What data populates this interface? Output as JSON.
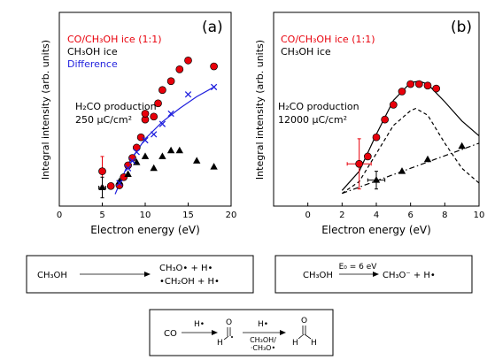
{
  "chart_data": [
    {
      "type": "scatter",
      "panel_label": "(a)",
      "xlabel": "Electron energy (eV)",
      "ylabel": "Integral intensity (arb. units)",
      "xlim": [
        0,
        20
      ],
      "ylim": [
        0,
        10
      ],
      "xticks": [
        "0",
        "5",
        "10",
        "15",
        "20"
      ],
      "legend": [
        {
          "label": "CO/CH₃OH ice (1:1)",
          "color": "#e8000b"
        },
        {
          "label": "CH₃OH ice",
          "color": "#000000"
        },
        {
          "label": "Difference",
          "color": "#1f1fdd"
        }
      ],
      "annotation": [
        "H₂CO production",
        "250 μC/cm²"
      ],
      "series": [
        {
          "name": "CO/CH₃OH ice (1:1)",
          "marker": "circle",
          "x": [
            5,
            6,
            7,
            7.5,
            8,
            8.5,
            9,
            9.5,
            10,
            10,
            11,
            11.5,
            12,
            13,
            14,
            15,
            18
          ],
          "y": [
            1.7,
            0.7,
            0.75,
            1.3,
            2.1,
            2.6,
            3.3,
            4.0,
            5.2,
            5.6,
            5.4,
            6.3,
            7.2,
            7.8,
            8.6,
            9.2,
            8.8
          ],
          "error_points": [
            {
              "x": 5,
              "y": 1.7,
              "xerr": 0.3,
              "yerr": 1.0
            }
          ]
        },
        {
          "name": "CH₃OH ice",
          "marker": "triangle",
          "x": [
            5,
            7,
            8,
            9,
            10,
            11,
            12,
            13,
            14,
            16,
            18
          ],
          "y": [
            0.6,
            1.0,
            1.5,
            2.3,
            2.7,
            1.9,
            2.7,
            3.1,
            3.1,
            2.4,
            2.0
          ],
          "error_points": [
            {
              "x": 5,
              "y": 0.6,
              "xerr": 0.4,
              "yerr": 0.7
            }
          ]
        },
        {
          "name": "Difference",
          "marker": "x",
          "x": [
            7,
            8,
            8.5,
            9,
            10,
            11,
            12,
            13,
            15,
            18
          ],
          "y": [
            0.9,
            1.9,
            2.4,
            3.0,
            3.8,
            4.2,
            4.9,
            5.6,
            6.9,
            7.4
          ]
        }
      ],
      "fit_line": {
        "color": "#1f1fdd",
        "x": [
          6.5,
          8,
          10,
          12,
          14,
          16,
          18
        ],
        "y": [
          0.15,
          2.2,
          3.9,
          5.05,
          5.95,
          6.75,
          7.4
        ]
      }
    },
    {
      "type": "scatter",
      "panel_label": "(b)",
      "xlabel": "Electron energy (eV)",
      "ylabel": "Integral intensity (arb. units)",
      "xlim": [
        -2,
        10
      ],
      "ylim": [
        0,
        10
      ],
      "xticks": [
        "0",
        "2",
        "4",
        "6",
        "8",
        "10"
      ],
      "legend": [
        {
          "label": "CO/CH₃OH ice (1:1)",
          "color": "#e8000b"
        },
        {
          "label": "CH₃OH ice",
          "color": "#000000"
        }
      ],
      "annotation": [
        "H₂CO production",
        "12000 μC/cm²"
      ],
      "series": [
        {
          "name": "CO/CH₃OH ice (1:1)",
          "marker": "circle",
          "x": [
            3,
            3.5,
            4,
            4.5,
            5,
            5.5,
            6,
            6.5,
            7,
            7.5
          ],
          "y": [
            2.2,
            2.7,
            4.0,
            5.2,
            6.2,
            7.1,
            7.6,
            7.6,
            7.5,
            7.3
          ],
          "error_points": [
            {
              "x": 3,
              "y": 2.2,
              "xerr": 0.7,
              "yerr": 1.7
            }
          ]
        },
        {
          "name": "CH₃OH ice",
          "marker": "triangle",
          "x": [
            4,
            5.5,
            7,
            9
          ],
          "y": [
            1.1,
            1.7,
            2.5,
            3.4
          ],
          "error_points": [
            {
              "x": 4,
              "y": 1.1,
              "xerr": 0.5,
              "yerr": 0.6
            }
          ]
        }
      ],
      "curves": [
        {
          "style": "solid",
          "x": [
            2,
            3,
            4,
            5,
            6,
            6.5,
            7,
            8,
            9,
            10
          ],
          "y": [
            0.4,
            1.7,
            4.2,
            6.5,
            7.7,
            7.8,
            7.6,
            6.4,
            5.1,
            4.1
          ]
        },
        {
          "style": "dashed",
          "x": [
            2,
            3,
            4,
            5,
            6,
            6.3,
            7,
            8,
            9,
            10
          ],
          "y": [
            0.2,
            1.0,
            2.9,
            4.8,
            5.8,
            5.95,
            5.5,
            3.6,
            1.9,
            0.9
          ]
        },
        {
          "style": "dashdot",
          "x": [
            2,
            10
          ],
          "y": [
            0.2,
            3.6
          ]
        }
      ]
    }
  ],
  "reactions": {
    "a": {
      "reactant": "CH₃OH",
      "product1": "CH₃O• + H•",
      "product2": "•CH₂OH + H•"
    },
    "b": {
      "reactant": "CH₃OH",
      "arrow_label": "E₀ = 6 eV",
      "product": "CH₃O⁻ + H•"
    },
    "c": {
      "start": "CO",
      "arrow1_label": "H•",
      "intermediate_h": "H",
      "intermediate_o": "O",
      "arrow2_label": "H•",
      "arrow2_sub1": "CH₃OH/",
      "arrow2_sub2": "·CH₃O•",
      "final_h1": "H",
      "final_h2": "H",
      "final_o": "O"
    }
  }
}
